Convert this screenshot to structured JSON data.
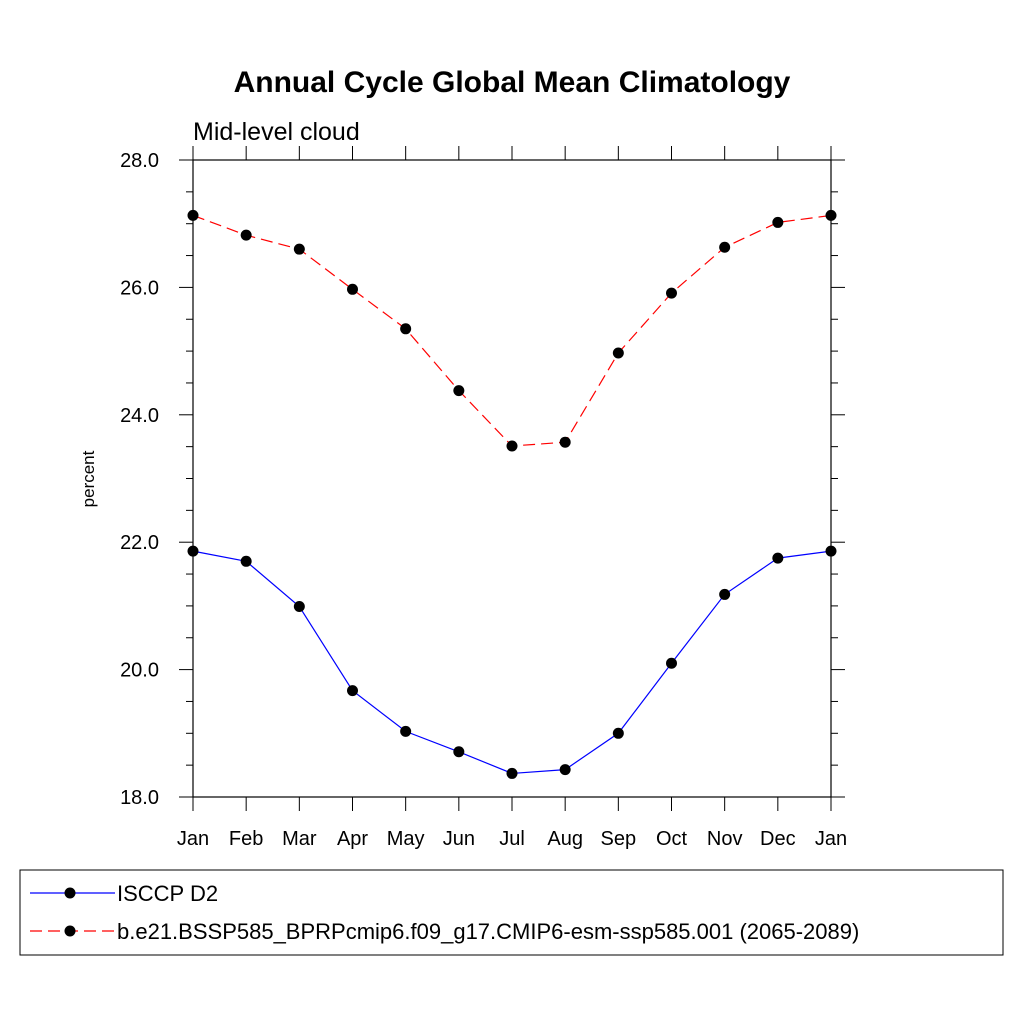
{
  "chart_data": {
    "type": "line",
    "title": "Annual Cycle Global Mean Climatology",
    "subtitle": "Mid-level cloud",
    "xlabel": "",
    "ylabel": "percent",
    "categories": [
      "Jan",
      "Feb",
      "Mar",
      "Apr",
      "May",
      "Jun",
      "Jul",
      "Aug",
      "Sep",
      "Oct",
      "Nov",
      "Dec",
      "Jan"
    ],
    "ylim": [
      18.0,
      28.0
    ],
    "y_ticks": [
      18.0,
      20.0,
      22.0,
      24.0,
      26.0,
      28.0
    ],
    "y_tick_labels": [
      "18.0",
      "20.0",
      "22.0",
      "24.0",
      "26.0",
      "28.0"
    ],
    "series": [
      {
        "name": "ISCCP D2",
        "color": "#0000ff",
        "dash": "solid",
        "values": [
          21.86,
          21.7,
          20.99,
          19.67,
          19.03,
          18.71,
          18.37,
          18.43,
          19.0,
          20.1,
          21.18,
          21.75,
          21.86
        ]
      },
      {
        "name": "b.e21.BSSP585_BPRPcmip6.f09_g17.CMIP6-esm-ssp585.001 (2065-2089)",
        "color": "#ff0000",
        "dash": "dashed",
        "values": [
          27.13,
          26.82,
          26.6,
          25.97,
          25.35,
          24.38,
          23.51,
          23.57,
          24.97,
          25.91,
          26.63,
          27.02,
          27.13
        ]
      }
    ],
    "grid": false,
    "legend_position": "bottom"
  }
}
